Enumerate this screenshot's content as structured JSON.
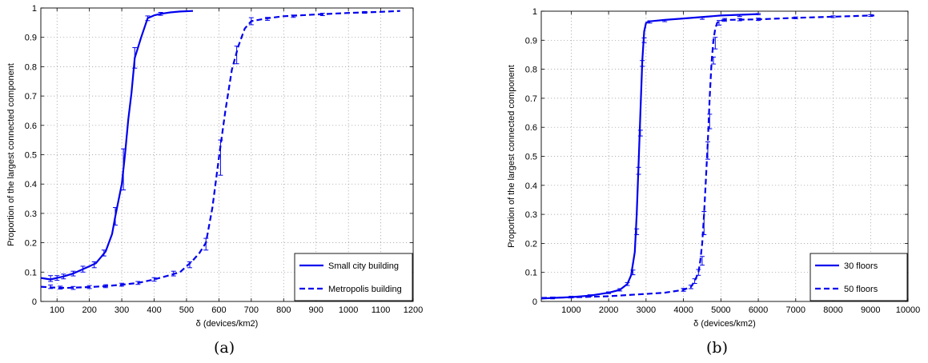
{
  "captions": [
    "(a)",
    "(b)"
  ],
  "chart_data": [
    {
      "type": "line",
      "xlabel": "δ (devices/km2)",
      "ylabel": "Proportion of the largest connected component",
      "xlim": [
        50,
        1200
      ],
      "ylim": [
        0,
        1
      ],
      "xticks": [
        100,
        200,
        300,
        400,
        500,
        600,
        700,
        800,
        900,
        1000,
        1100,
        1200
      ],
      "yticks": [
        0,
        0.1,
        0.2,
        0.3,
        0.4,
        0.5,
        0.6,
        0.7,
        0.8,
        0.9,
        1
      ],
      "grid": true,
      "legend_position": "bottom-right",
      "color": "#0000ee",
      "series": [
        {
          "name": "Small city building",
          "style": "solid",
          "x": [
            50,
            80,
            100,
            120,
            150,
            180,
            200,
            220,
            250,
            270,
            280,
            300,
            310,
            320,
            330,
            340,
            360,
            380,
            400,
            420,
            450,
            480,
            520
          ],
          "y": [
            0.08,
            0.075,
            0.08,
            0.085,
            0.095,
            0.11,
            0.12,
            0.13,
            0.17,
            0.23,
            0.29,
            0.4,
            0.5,
            0.62,
            0.71,
            0.83,
            0.9,
            0.965,
            0.975,
            0.98,
            0.985,
            0.988,
            0.99
          ],
          "err_x": [
            80,
            100,
            120,
            150,
            180,
            215,
            245,
            280,
            305,
            340,
            380,
            420
          ],
          "err_y": [
            0.078,
            0.08,
            0.085,
            0.095,
            0.11,
            0.125,
            0.165,
            0.29,
            0.45,
            0.83,
            0.965,
            0.98
          ],
          "err_h": [
            0.01,
            0.008,
            0.008,
            0.008,
            0.01,
            0.01,
            0.01,
            0.03,
            0.07,
            0.035,
            0.008,
            0.005
          ]
        },
        {
          "name": "Metropolis building",
          "style": "dashed",
          "x": [
            50,
            80,
            100,
            130,
            150,
            200,
            250,
            300,
            350,
            400,
            450,
            480,
            500,
            520,
            540,
            560,
            580,
            600,
            620,
            640,
            660,
            680,
            700,
            750,
            800,
            900,
            1000,
            1100,
            1160
          ],
          "y": [
            0.05,
            0.048,
            0.047,
            0.046,
            0.047,
            0.049,
            0.052,
            0.057,
            0.063,
            0.075,
            0.09,
            0.1,
            0.12,
            0.14,
            0.165,
            0.2,
            0.32,
            0.49,
            0.65,
            0.79,
            0.87,
            0.93,
            0.955,
            0.965,
            0.972,
            0.978,
            0.983,
            0.987,
            0.99
          ],
          "err_x": [
            80,
            110,
            150,
            200,
            250,
            300,
            350,
            400,
            460,
            510,
            560,
            605,
            655,
            700,
            750,
            830,
            920,
            1050
          ],
          "err_y": [
            0.05,
            0.047,
            0.046,
            0.049,
            0.052,
            0.057,
            0.063,
            0.075,
            0.095,
            0.125,
            0.195,
            0.49,
            0.84,
            0.955,
            0.963,
            0.972,
            0.978,
            0.985
          ],
          "err_h": [
            0.006,
            0.005,
            0.005,
            0.005,
            0.005,
            0.005,
            0.005,
            0.006,
            0.008,
            0.01,
            0.02,
            0.06,
            0.03,
            0.012,
            0.005,
            0.004,
            0.004,
            0.003
          ]
        }
      ]
    },
    {
      "type": "line",
      "xlabel": "δ (devices/km2)",
      "ylabel": "Proportion of the largest connected component",
      "xlim": [
        200,
        10000
      ],
      "ylim": [
        0,
        1
      ],
      "xticks": [
        1000,
        2000,
        3000,
        4000,
        5000,
        6000,
        7000,
        8000,
        9000,
        10000
      ],
      "yticks": [
        0,
        0.1,
        0.2,
        0.3,
        0.4,
        0.5,
        0.6,
        0.7,
        0.8,
        0.9,
        1
      ],
      "grid": true,
      "legend_position": "bottom-right",
      "color": "#0000ee",
      "series": [
        {
          "name": "30 floors",
          "style": "solid",
          "x": [
            200,
            500,
            1000,
            1500,
            2000,
            2300,
            2500,
            2600,
            2700,
            2750,
            2800,
            2850,
            2900,
            2950,
            3000,
            3100,
            3500,
            4000,
            5000,
            6000
          ],
          "y": [
            0.01,
            0.012,
            0.015,
            0.02,
            0.03,
            0.04,
            0.06,
            0.09,
            0.17,
            0.3,
            0.47,
            0.65,
            0.83,
            0.93,
            0.96,
            0.965,
            0.97,
            0.975,
            0.985,
            0.99
          ],
          "err_x": [
            500,
            1000,
            1500,
            2000,
            2300,
            2500,
            2650,
            2750,
            2800,
            2850,
            2900,
            2950,
            3100,
            3500,
            4500,
            5500,
            6000
          ],
          "err_y": [
            0.012,
            0.015,
            0.02,
            0.03,
            0.04,
            0.06,
            0.1,
            0.24,
            0.45,
            0.58,
            0.82,
            0.9,
            0.963,
            0.967,
            0.975,
            0.985,
            0.99
          ],
          "err_h": [
            0.003,
            0.003,
            0.003,
            0.003,
            0.004,
            0.005,
            0.008,
            0.01,
            0.012,
            0.01,
            0.01,
            0.008,
            0.004,
            0.003,
            0.003,
            0.003,
            0.002
          ]
        },
        {
          "name": "50 floors",
          "style": "dashed",
          "x": [
            200,
            500,
            1000,
            1500,
            2000,
            2500,
            3000,
            3500,
            4000,
            4200,
            4300,
            4400,
            4450,
            4500,
            4550,
            4600,
            4650,
            4700,
            4750,
            4800,
            4850,
            4900,
            4950,
            5000,
            5100,
            6000,
            7000,
            8000,
            9000,
            9100
          ],
          "y": [
            0.012,
            0.013,
            0.014,
            0.016,
            0.018,
            0.022,
            0.026,
            0.03,
            0.04,
            0.05,
            0.07,
            0.1,
            0.14,
            0.2,
            0.3,
            0.42,
            0.55,
            0.7,
            0.82,
            0.9,
            0.94,
            0.96,
            0.965,
            0.968,
            0.97,
            0.972,
            0.977,
            0.981,
            0.985,
            0.985
          ],
          "err_x": [
            4000,
            4200,
            4300,
            4400,
            4500,
            4550,
            4650,
            4700,
            4800,
            4850,
            4950,
            5100,
            5500,
            6000,
            7000,
            8000,
            9000
          ],
          "err_y": [
            0.04,
            0.05,
            0.07,
            0.1,
            0.14,
            0.27,
            0.52,
            0.62,
            0.83,
            0.89,
            0.96,
            0.97,
            0.971,
            0.972,
            0.977,
            0.981,
            0.985
          ],
          "err_h": [
            0.005,
            0.006,
            0.008,
            0.01,
            0.015,
            0.04,
            0.03,
            0.025,
            0.012,
            0.02,
            0.008,
            0.005,
            0.004,
            0.004,
            0.003,
            0.003,
            0.003
          ]
        }
      ]
    }
  ]
}
